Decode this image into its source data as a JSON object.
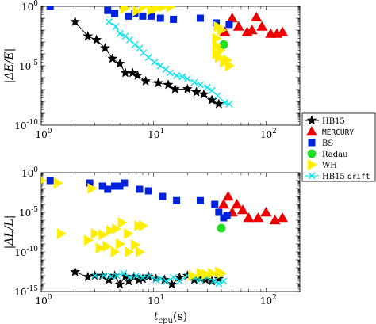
{
  "chart_data": [
    {
      "type": "scatter",
      "panel": "top",
      "ylabel": "|ΔE/E|",
      "xscale": "log",
      "yscale": "log",
      "xlim": [
        1,
        200
      ],
      "ylim": [
        1e-10,
        1
      ],
      "x_ticks": [
        {
          "value": 1,
          "label": "10",
          "exp": "0"
        },
        {
          "value": 10,
          "label": "10",
          "exp": "1"
        },
        {
          "value": 100,
          "label": "10",
          "exp": "2"
        }
      ],
      "y_ticks": [
        {
          "value": 1e-10,
          "label": "10",
          "exp": "-10"
        },
        {
          "value": 1e-05,
          "label": "10",
          "exp": "-5"
        },
        {
          "value": 1,
          "label": "10",
          "exp": "0"
        }
      ],
      "series": [
        {
          "name": "HB15",
          "marker": "star",
          "color": "#000000",
          "line": true,
          "points": [
            [
              2.0,
              0.05
            ],
            [
              2.6,
              0.003
            ],
            [
              3.1,
              0.0015
            ],
            [
              3.7,
              0.0003
            ],
            [
              4.3,
              4e-05
            ],
            [
              5.0,
              1.5e-05
            ],
            [
              5.6,
              2.5e-06
            ],
            [
              6.5,
              2.5e-06
            ],
            [
              7.2,
              1.5e-06
            ],
            [
              8.5,
              5e-07
            ],
            [
              11,
              3.5e-07
            ],
            [
              13.5,
              2.5e-07
            ],
            [
              15.5,
              1.1e-07
            ],
            [
              20,
              1.1e-07
            ],
            [
              24,
              6e-08
            ],
            [
              28,
              4e-08
            ],
            [
              33,
              1.3e-08
            ],
            [
              38,
              6e-09
            ]
          ]
        },
        {
          "name": "HB15 drift",
          "marker": "x",
          "color": "#00e5ee",
          "line": true,
          "points": [
            [
              4.0,
              0.05
            ],
            [
              4.6,
              0.02
            ],
            [
              5.0,
              0.005
            ],
            [
              5.6,
              0.003
            ],
            [
              6.1,
              0.0015
            ],
            [
              6.8,
              0.0006
            ],
            [
              7.5,
              0.0003
            ],
            [
              8.1,
              0.00012
            ],
            [
              9.0,
              5e-05
            ],
            [
              10.2,
              2e-05
            ],
            [
              11.5,
              1e-05
            ],
            [
              12.8,
              5e-06
            ],
            [
              14,
              2.5e-06
            ],
            [
              16,
              1.5e-06
            ],
            [
              18,
              1.2e-06
            ],
            [
              20,
              8e-07
            ],
            [
              23,
              4e-07
            ],
            [
              26,
              2.5e-07
            ],
            [
              30,
              1.5e-07
            ],
            [
              33,
              8e-08
            ],
            [
              37,
              3e-08
            ],
            [
              43,
              8e-09
            ],
            [
              47,
              6e-09
            ]
          ]
        },
        {
          "name": "MERCURY",
          "marker": "triangle",
          "color": "#ee0000",
          "points": [
            [
              43,
              0.007
            ],
            [
              50,
              0.1
            ],
            [
              57,
              0.02
            ],
            [
              68,
              0.007
            ],
            [
              75,
              0.01
            ],
            [
              82,
              0.12
            ],
            [
              92,
              0.02
            ],
            [
              110,
              0.005
            ],
            [
              125,
              0.005
            ],
            [
              140,
              0.007
            ]
          ]
        },
        {
          "name": "BS",
          "marker": "square",
          "color": "#0022dd",
          "points": [
            [
              1.2,
              1.0
            ],
            [
              3.9,
              0.45
            ],
            [
              4.5,
              0.25
            ],
            [
              6.0,
              0.15
            ],
            [
              6.8,
              0.25
            ],
            [
              8.0,
              0.15
            ],
            [
              9.5,
              0.15
            ],
            [
              11.5,
              0.1
            ],
            [
              15,
              0.08
            ],
            [
              26,
              0.1
            ],
            [
              36,
              0.04
            ],
            [
              47,
              0.03
            ]
          ]
        },
        {
          "name": "Radau",
          "marker": "circle",
          "color": "#22dd22",
          "points": [
            [
              42,
              0.0006
            ]
          ]
        },
        {
          "name": "WH",
          "marker": "triangle-right",
          "color": "#ffee00",
          "points": [
            [
              5.5,
              0.7
            ],
            [
              7,
              0.4
            ],
            [
              8,
              0.9
            ],
            [
              9.5,
              0.5
            ],
            [
              10.5,
              0.7
            ],
            [
              12,
              0.9
            ],
            [
              14,
              0.9
            ],
            [
              37,
              0.02
            ],
            [
              40,
              0.01
            ],
            [
              36,
              0.002
            ],
            [
              36,
              0.0005
            ],
            [
              39,
              0.0002
            ],
            [
              36,
              0.0001
            ],
            [
              38,
              5e-05
            ],
            [
              42,
              2e-05
            ],
            [
              47,
              1e-05
            ],
            [
              45,
              3e-05
            ]
          ]
        }
      ]
    },
    {
      "type": "scatter",
      "panel": "bottom",
      "ylabel": "|ΔL/L|",
      "xlabel": "t_cpu(s)",
      "xscale": "log",
      "yscale": "log",
      "xlim": [
        1,
        200
      ],
      "ylim": [
        1e-15,
        1
      ],
      "x_ticks": [
        {
          "value": 1,
          "label": "10",
          "exp": "0"
        },
        {
          "value": 10,
          "label": "10",
          "exp": "1"
        },
        {
          "value": 100,
          "label": "10",
          "exp": "2"
        }
      ],
      "y_ticks": [
        {
          "value": 1e-15,
          "label": "10",
          "exp": "-15"
        },
        {
          "value": 1e-10,
          "label": "10",
          "exp": "-10"
        },
        {
          "value": 1e-05,
          "label": "10",
          "exp": "-5"
        },
        {
          "value": 1,
          "label": "10",
          "exp": "0"
        }
      ],
      "series": [
        {
          "name": "HB15",
          "marker": "star",
          "color": "#000000",
          "line": true,
          "points": [
            [
              2.0,
              3e-13
            ],
            [
              2.6,
              7e-14
            ],
            [
              3.0,
              1e-13
            ],
            [
              3.5,
              1e-13
            ],
            [
              4.0,
              3e-14
            ],
            [
              4.5,
              1e-13
            ],
            [
              5.0,
              8e-15
            ],
            [
              5.6,
              8e-14
            ],
            [
              6.0,
              2e-14
            ],
            [
              6.7,
              7e-14
            ],
            [
              7.4,
              3e-14
            ],
            [
              8.0,
              4e-14
            ],
            [
              9.0,
              8e-14
            ],
            [
              10.5,
              4e-14
            ],
            [
              12.5,
              3e-14
            ],
            [
              14.5,
              8e-15
            ],
            [
              17,
              6e-14
            ],
            [
              20,
              1e-13
            ],
            [
              23,
              3e-14
            ],
            [
              26,
              4e-14
            ],
            [
              29,
              3e-14
            ],
            [
              33,
              2e-14
            ],
            [
              38,
              4e-14
            ]
          ]
        },
        {
          "name": "HB15 drift",
          "marker": "x",
          "color": "#00e5ee",
          "line": true,
          "points": [
            [
              3.0,
              1e-13
            ],
            [
              3.6,
              1e-13
            ],
            [
              4.2,
              8e-14
            ],
            [
              4.7,
              1e-13
            ],
            [
              5.4,
              2e-13
            ],
            [
              6.1,
              6e-14
            ],
            [
              7.0,
              1e-13
            ],
            [
              8.0,
              6e-14
            ],
            [
              9.2,
              1e-13
            ],
            [
              10.5,
              3e-14
            ],
            [
              11.5,
              4e-14
            ],
            [
              13,
              2e-14
            ],
            [
              15,
              6e-14
            ],
            [
              17,
              2e-14
            ],
            [
              20,
              1e-13
            ],
            [
              23,
              5e-14
            ],
            [
              26,
              3e-14
            ],
            [
              30,
              6e-14
            ],
            [
              34,
              2e-14
            ],
            [
              38,
              1e-14
            ],
            [
              42,
              2e-14
            ]
          ]
        },
        {
          "name": "MERCURY",
          "marker": "triangle",
          "color": "#ee0000",
          "points": [
            [
              42,
              0.0001
            ],
            [
              46,
              0.001
            ],
            [
              50,
              1e-05
            ],
            [
              55,
              0.0001
            ],
            [
              62,
              2e-05
            ],
            [
              70,
              2e-06
            ],
            [
              85,
              2e-06
            ],
            [
              100,
              1e-05
            ],
            [
              120,
              1e-06
            ],
            [
              140,
              2e-06
            ]
          ]
        },
        {
          "name": "BS",
          "marker": "square",
          "color": "#0022dd",
          "points": [
            [
              1.2,
              0.1
            ],
            [
              2.7,
              0.05
            ],
            [
              3.5,
              0.02
            ],
            [
              3.9,
              0.008
            ],
            [
              4.5,
              0.02
            ],
            [
              5.0,
              0.02
            ],
            [
              5.5,
              0.05
            ],
            [
              7.5,
              0.008
            ],
            [
              9,
              0.005
            ],
            [
              12,
              0.001
            ],
            [
              16,
              0.0003
            ],
            [
              26,
              0.0003
            ],
            [
              35,
              0.0001
            ],
            [
              38,
              1e-05
            ],
            [
              42,
              2e-06
            ],
            [
              45,
              4e-06
            ]
          ]
        },
        {
          "name": "Radau",
          "marker": "circle",
          "color": "#22dd22",
          "points": [
            [
              40,
              1e-07
            ]
          ]
        },
        {
          "name": "WH",
          "marker": "triangle-right",
          "color": "#ffee00",
          "points": [
            [
              1.0,
              0.1
            ],
            [
              1.4,
              0.05
            ],
            [
              2.8,
              0.01
            ],
            [
              1.5,
              2e-08
            ],
            [
              3.0,
              2e-08
            ],
            [
              2.6,
              3e-09
            ],
            [
              3.5,
              1.5e-08
            ],
            [
              4.1,
              5e-08
            ],
            [
              4.6,
              8e-08
            ],
            [
              5.2,
              5e-07
            ],
            [
              5.9,
              2e-08
            ],
            [
              7.3,
              2e-07
            ],
            [
              3.3,
              3e-10
            ],
            [
              3.8,
              5e-10
            ],
            [
              4.5,
              1e-10
            ],
            [
              5.0,
              1e-09
            ],
            [
              6.0,
              1e-10
            ],
            [
              6.8,
              8e-10
            ],
            [
              7.5,
              1e-10
            ],
            [
              8.0,
              2e-07
            ],
            [
              22,
              1e-13
            ],
            [
              26,
              2e-13
            ],
            [
              29,
              1.5e-13
            ],
            [
              33,
              2e-13
            ],
            [
              38,
              3e-13
            ],
            [
              40,
              2e-13
            ]
          ]
        }
      ]
    }
  ],
  "legend": {
    "placement": "right, between panels",
    "entries": [
      {
        "label": "HB15",
        "marker": "star",
        "color": "#000000",
        "mono": false
      },
      {
        "label": "MERCURY",
        "marker": "triangle",
        "color": "#ee0000",
        "mono": true
      },
      {
        "label": "BS",
        "marker": "square",
        "color": "#0022dd",
        "mono": false
      },
      {
        "label": "Radau",
        "marker": "circle",
        "color": "#22dd22",
        "mono": false
      },
      {
        "label": "WH",
        "marker": "triangle-right",
        "color": "#ffee00",
        "mono": false
      },
      {
        "label": "HB15 drift",
        "marker": "x",
        "color": "#00e5ee",
        "mono": false
      }
    ]
  }
}
